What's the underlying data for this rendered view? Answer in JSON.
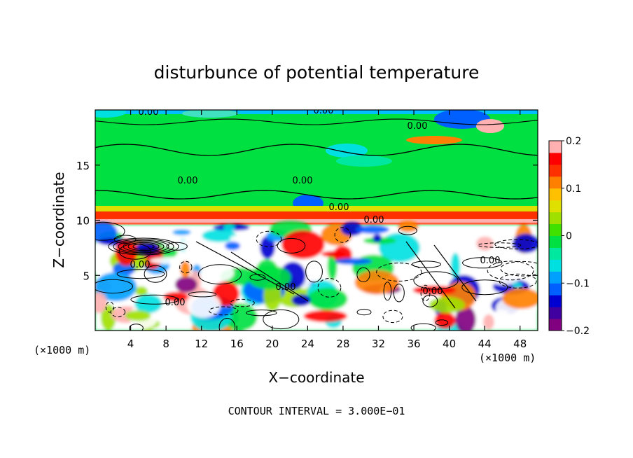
{
  "chart_data": {
    "type": "heatmap",
    "title": "disturbunce of potential temperature",
    "xlabel": "X−coordinate",
    "ylabel": "Z−coordinate",
    "x_unit_left": "(×1000 m)",
    "x_unit_right": "(×1000 m)",
    "xlim": [
      0,
      50
    ],
    "ylim": [
      0,
      20
    ],
    "x_ticks": [
      4,
      8,
      12,
      16,
      20,
      24,
      28,
      32,
      36,
      40,
      44,
      48
    ],
    "y_ticks": [
      5,
      10,
      15
    ],
    "colorbar": {
      "range": [
        -0.2,
        0.2
      ],
      "tick_labels": [
        "0.2",
        "0.1",
        "0",
        "−0.1",
        "−0.2"
      ],
      "tick_values": [
        0.2,
        0.1,
        0,
        -0.1,
        -0.2
      ],
      "colors": [
        "#800080",
        "#4000a0",
        "#0000d0",
        "#0060ff",
        "#00a0ff",
        "#00e0e0",
        "#00e8a0",
        "#00e040",
        "#40e000",
        "#a0e000",
        "#e0e000",
        "#ffc000",
        "#ff8000",
        "#ff3000",
        "#ff0000",
        "#ffb0b0"
      ]
    },
    "contour_labels": [
      "0.00",
      "0.00",
      "0.00",
      "0.00",
      "0.00",
      "0.00",
      "0.00",
      "0.00",
      "0.00",
      "0.00",
      "0.00",
      "0.00"
    ],
    "footer": "CONTOUR INTERVAL = 3.000E−01"
  }
}
